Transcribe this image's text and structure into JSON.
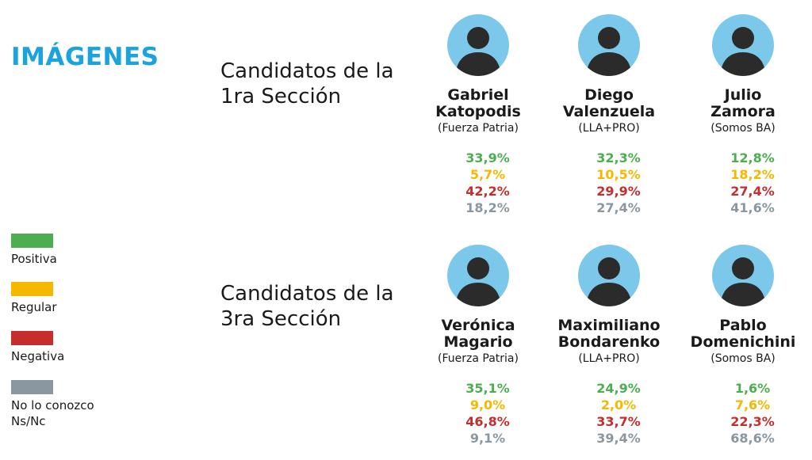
{
  "header": {
    "title": "IMÁGENES"
  },
  "colors": {
    "accent": "#1aa3dd",
    "positiva": "#4cae4f",
    "regular": "#f5b800",
    "negativa": "#c62e2e",
    "no_lo_conozco": "#8a97a0",
    "photo_bg": "#7cc8ea"
  },
  "legend": [
    {
      "label": "Positiva",
      "color": "#4cae4f"
    },
    {
      "label": "Regular",
      "color": "#f5b800"
    },
    {
      "label": "Negativa",
      "color": "#c62e2e"
    },
    {
      "label": "No lo conozco Ns/Nc",
      "color": "#8a97a0"
    }
  ],
  "sections": [
    {
      "title": "Candidatos de la 1ra Sección"
    },
    {
      "title": "Candidatos de la 3ra Sección"
    }
  ],
  "chart_data": {
    "type": "table",
    "title": "IMÁGENES",
    "series_names": [
      "Positiva",
      "Regular",
      "Negativa",
      "No lo conozco Ns/Nc"
    ],
    "sections": [
      {
        "title": "Candidatos de la 1ra Sección",
        "candidates": [
          {
            "name": "Gabriel Katopodis",
            "party": "(Fuerza Patria)",
            "photo_icon": "candidate-photo-icon",
            "values": {
              "positiva": "33,9%",
              "regular": "5,7%",
              "negativa": "42,2%",
              "no_lo_conozco": "18,2%"
            }
          },
          {
            "name": "Diego Valenzuela",
            "party": "(LLA+PRO)",
            "photo_icon": "candidate-photo-icon",
            "values": {
              "positiva": "32,3%",
              "regular": "10,5%",
              "negativa": "29,9%",
              "no_lo_conozco": "27,4%"
            }
          },
          {
            "name": "Julio Zamora",
            "party": "(Somos BA)",
            "photo_icon": "candidate-photo-icon",
            "values": {
              "positiva": "12,8%",
              "regular": "18,2%",
              "negativa": "27,4%",
              "no_lo_conozco": "41,6%"
            }
          }
        ]
      },
      {
        "title": "Candidatos de la 3ra Sección",
        "candidates": [
          {
            "name": "Verónica Magario",
            "party": "(Fuerza Patria)",
            "photo_icon": "candidate-photo-icon",
            "values": {
              "positiva": "35,1%",
              "regular": "9,0%",
              "negativa": "46,8%",
              "no_lo_conozco": "9,1%"
            }
          },
          {
            "name": "Maximiliano Bondarenko",
            "party": "(LLA+PRO)",
            "photo_icon": "candidate-photo-icon",
            "values": {
              "positiva": "24,9%",
              "regular": "2,0%",
              "negativa": "33,7%",
              "no_lo_conozco": "39,4%"
            }
          },
          {
            "name": "Pablo Domenichini",
            "party": "(Somos BA)",
            "photo_icon": "candidate-photo-icon",
            "values": {
              "positiva": "1,6%",
              "regular": "7,6%",
              "negativa": "22,3%",
              "no_lo_conozco": "68,6%"
            }
          }
        ]
      }
    ]
  }
}
